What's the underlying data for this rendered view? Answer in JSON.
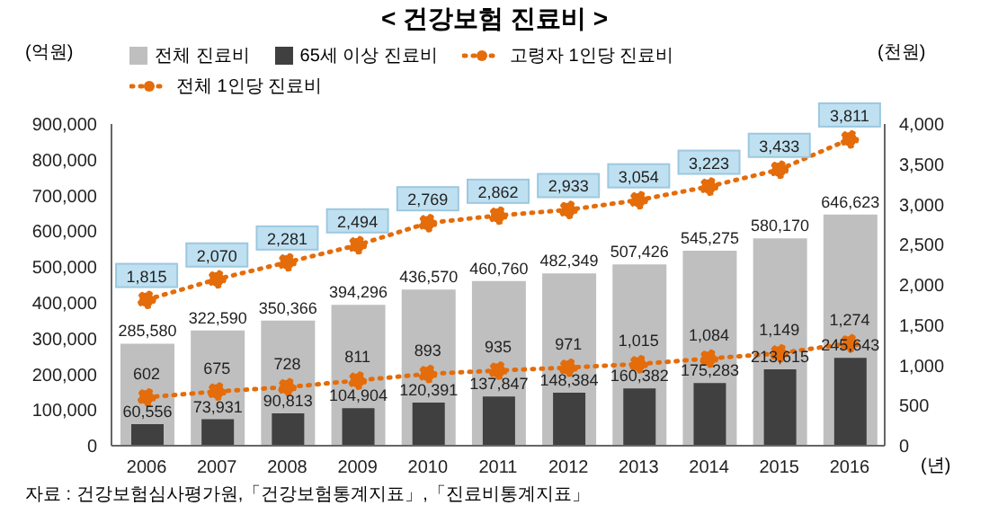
{
  "chart_data": {
    "type": "bar",
    "title": "< 건강보험 진료비 >",
    "ylabel": "(억원)",
    "y2label": "(천원)",
    "xlabel": "(년)",
    "categories": [
      "2006",
      "2007",
      "2008",
      "2009",
      "2010",
      "2011",
      "2012",
      "2013",
      "2014",
      "2015",
      "2016"
    ],
    "series": [
      {
        "name": "전체 진료비",
        "color": "#bfbfbf",
        "values": [
          285580,
          322590,
          350366,
          394296,
          436570,
          460760,
          482349,
          507426,
          545275,
          580170,
          646623
        ],
        "value_labels": [
          "285,580",
          "322,590",
          "350,366",
          "394,296",
          "436,570",
          "460,760",
          "482,349",
          "507,426",
          "545,275",
          "580,170",
          "646,623"
        ]
      },
      {
        "name": "65세 이상 진료비",
        "color": "#404040",
        "values": [
          60556,
          73931,
          90813,
          104904,
          120391,
          137847,
          148384,
          160382,
          175283,
          213615,
          245643
        ],
        "value_labels": [
          "60,556",
          "73,931",
          "90,813",
          "104,904",
          "120,391",
          "137,847",
          "148,384",
          "160,382",
          "175,283",
          "213,615",
          "245,643"
        ]
      },
      {
        "name": "고령자 1인당 진료비",
        "type": "line",
        "axis": "y2",
        "color": "#e46c0a",
        "values": [
          1815,
          2070,
          2281,
          2494,
          2769,
          2862,
          2933,
          3054,
          3223,
          3433,
          3811
        ],
        "value_labels": [
          "1,815",
          "2,070",
          "2,281",
          "2,494",
          "2,769",
          "2,862",
          "2,933",
          "3,054",
          "3,223",
          "3,433",
          "3,811"
        ]
      },
      {
        "name": "전체 1인당 진료비",
        "type": "line",
        "axis": "y2",
        "color": "#e46c0a",
        "values": [
          602,
          675,
          728,
          811,
          893,
          935,
          971,
          1015,
          1084,
          1149,
          1274
        ],
        "value_labels": [
          "602",
          "675",
          "728",
          "811",
          "893",
          "935",
          "971",
          "1,015",
          "1,084",
          "1,149",
          "1,274"
        ]
      }
    ],
    "ylim": [
      0,
      900000
    ],
    "yticks": [
      0,
      {
        "value": 100000,
        "label": "100,000"
      },
      {
        "value": 200000,
        "label": "200,000"
      },
      {
        "value": 300000,
        "label": "300,000"
      },
      {
        "value": 400000,
        "label": "400,000"
      },
      {
        "value": 500000,
        "label": "500,000"
      },
      {
        "value": 600000,
        "label": "600,000"
      },
      {
        "value": 700000,
        "label": "700,000"
      },
      {
        "value": 800000,
        "label": "800,000"
      },
      {
        "value": 900000,
        "label": "900,000"
      }
    ],
    "y2lim": [
      0,
      4000
    ],
    "y2ticks": [
      0,
      500,
      {
        "value": 1000,
        "label": "1,000"
      },
      {
        "value": 1500,
        "label": "1,500"
      },
      {
        "value": 2000,
        "label": "2,000"
      },
      {
        "value": 2500,
        "label": "2,500"
      },
      {
        "value": 3000,
        "label": "3,000"
      },
      {
        "value": 3500,
        "label": "3,500"
      },
      {
        "value": 4000,
        "label": "4,000"
      }
    ],
    "legend": "top",
    "marker": "circle",
    "line_style": "dotted",
    "annotations": [
      "자료 : 건강보험심사평가원,「건강보험통계지표」,「진료비통계지표」"
    ]
  }
}
